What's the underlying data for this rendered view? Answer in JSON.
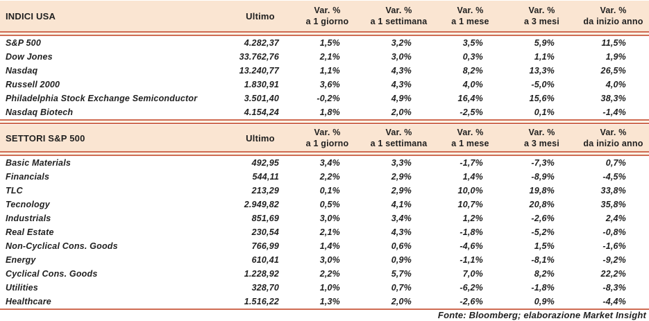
{
  "colors": {
    "peach": "#fae5d2",
    "salmon": "#cf6c53",
    "rulegap": "#fbf3e6",
    "ink": "#1f1f1f"
  },
  "footer": "Fonte: Bloomberg; elaborazione Market Insight",
  "tables": [
    {
      "title": "INDICI USA",
      "ultimo_label": "Ultimo",
      "var_headers": [
        [
          "Var. %",
          "a 1 giorno"
        ],
        [
          "Var. %",
          "a 1 settimana"
        ],
        [
          "Var. %",
          "a 1 mese"
        ],
        [
          "Var. %",
          "a 3 mesi"
        ],
        [
          "Var. %",
          "da inizio anno"
        ]
      ],
      "rows": [
        {
          "name": "S&P 500",
          "ultimo": "4.282,37",
          "vars": [
            "1,5%",
            "3,2%",
            "3,5%",
            "5,9%",
            "11,5%"
          ]
        },
        {
          "name": "Dow Jones",
          "ultimo": "33.762,76",
          "vars": [
            "2,1%",
            "3,0%",
            "0,3%",
            "1,1%",
            "1,9%"
          ]
        },
        {
          "name": "Nasdaq",
          "ultimo": "13.240,77",
          "vars": [
            "1,1%",
            "4,3%",
            "8,2%",
            "13,3%",
            "26,5%"
          ]
        },
        {
          "name": "Russell 2000",
          "ultimo": "1.830,91",
          "vars": [
            "3,6%",
            "4,3%",
            "4,0%",
            "-5,0%",
            "4,0%"
          ]
        },
        {
          "name": "Philadelphia Stock Exchange Semiconductor",
          "ultimo": "3.501,40",
          "vars": [
            "-0,2%",
            "4,9%",
            "16,4%",
            "15,6%",
            "38,3%"
          ]
        },
        {
          "name": "Nasdaq Biotech",
          "ultimo": "4.154,24",
          "vars": [
            "1,8%",
            "2,0%",
            "-2,5%",
            "0,1%",
            "-1,4%"
          ]
        }
      ]
    },
    {
      "title": "SETTORI S&P 500",
      "ultimo_label": "Ultimo",
      "var_headers": [
        [
          "Var. %",
          "a 1 giorno"
        ],
        [
          "Var. %",
          "a 1 settimana"
        ],
        [
          "Var. %",
          "a 1 mese"
        ],
        [
          "Var. %",
          "a 3 mesi"
        ],
        [
          "Var. %",
          "da inizio anno"
        ]
      ],
      "rows": [
        {
          "name": "Basic Materials",
          "ultimo": "492,95",
          "vars": [
            "3,4%",
            "3,3%",
            "-1,7%",
            "-7,3%",
            "0,7%"
          ]
        },
        {
          "name": "Financials",
          "ultimo": "544,11",
          "vars": [
            "2,2%",
            "2,9%",
            "1,4%",
            "-8,9%",
            "-4,5%"
          ]
        },
        {
          "name": "TLC",
          "ultimo": "213,29",
          "vars": [
            "0,1%",
            "2,9%",
            "10,0%",
            "19,8%",
            "33,8%"
          ]
        },
        {
          "name": "Tecnology",
          "ultimo": "2.949,82",
          "vars": [
            "0,5%",
            "4,1%",
            "10,7%",
            "20,8%",
            "35,8%"
          ]
        },
        {
          "name": "Industrials",
          "ultimo": "851,69",
          "vars": [
            "3,0%",
            "3,4%",
            "1,2%",
            "-2,6%",
            "2,4%"
          ]
        },
        {
          "name": "Real Estate",
          "ultimo": "230,54",
          "vars": [
            "2,1%",
            "4,3%",
            "-1,8%",
            "-5,2%",
            "-0,8%"
          ]
        },
        {
          "name": "Non-Cyclical Cons. Goods",
          "ultimo": "766,99",
          "vars": [
            "1,4%",
            "0,6%",
            "-4,6%",
            "1,5%",
            "-1,6%"
          ]
        },
        {
          "name": "Energy",
          "ultimo": "610,41",
          "vars": [
            "3,0%",
            "0,9%",
            "-1,1%",
            "-8,1%",
            "-9,2%"
          ]
        },
        {
          "name": "Cyclical Cons. Goods",
          "ultimo": "1.228,92",
          "vars": [
            "2,2%",
            "5,7%",
            "7,0%",
            "8,2%",
            "22,2%"
          ]
        },
        {
          "name": "Utilities",
          "ultimo": "328,70",
          "vars": [
            "1,0%",
            "0,7%",
            "-6,2%",
            "-1,8%",
            "-8,3%"
          ]
        },
        {
          "name": "Healthcare",
          "ultimo": "1.516,22",
          "vars": [
            "1,3%",
            "2,0%",
            "-2,6%",
            "0,9%",
            "-4,4%"
          ]
        }
      ]
    }
  ]
}
